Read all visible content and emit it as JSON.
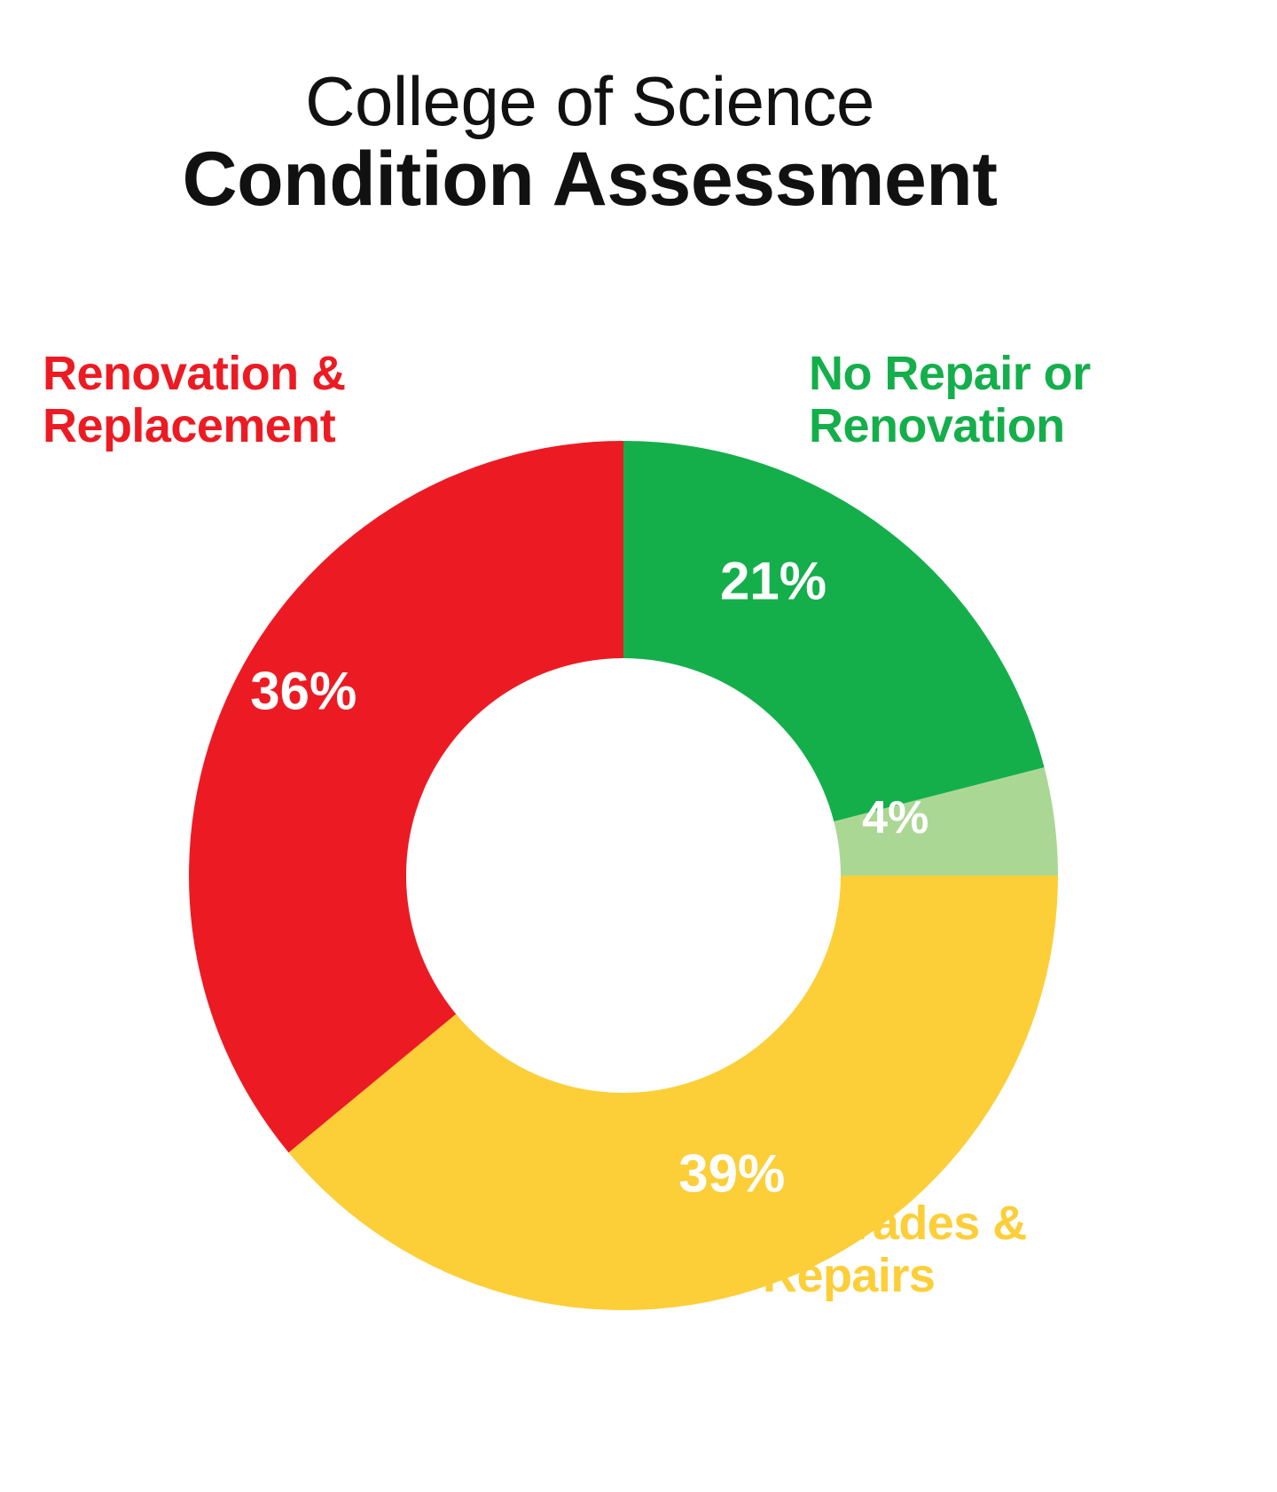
{
  "title": {
    "line1": "College of Science",
    "line2": "Condition Assessment"
  },
  "colors": {
    "red": "#EC1B23",
    "green": "#14AF4B",
    "light_green": "#ABD794",
    "yellow": "#FCCE38",
    "title_text": "#111111",
    "percent_text": "#FFFFFF"
  },
  "chart_data": {
    "type": "pie",
    "subtype": "donut",
    "title": "College of Science Condition Assessment",
    "start_angle_deg": 0,
    "direction": "clockwise",
    "inner_radius_ratio": 0.5,
    "legend_position": "outside-annotations",
    "slices": [
      {
        "label": "No Repair or Renovation",
        "value": 21,
        "pct_label": "21%",
        "color": "#14AF4B"
      },
      {
        "label": "",
        "value": 4,
        "pct_label": "4%",
        "color": "#ABD794"
      },
      {
        "label": "Upgrades & Repairs",
        "value": 39,
        "pct_label": "39%",
        "color": "#FCCE38"
      },
      {
        "label": "Renovation & Replacement",
        "value": 36,
        "pct_label": "36%",
        "color": "#EC1B23"
      }
    ]
  },
  "annotations": [
    {
      "line1": "Renovation &",
      "line2": "Replacement",
      "color": "#EC1B23"
    },
    {
      "line1": "No Repair or",
      "line2": "Renovation",
      "color": "#14AF4B"
    },
    {
      "line1": "Upgrades &",
      "line2": "Repairs",
      "color": "#FCCE38"
    }
  ]
}
